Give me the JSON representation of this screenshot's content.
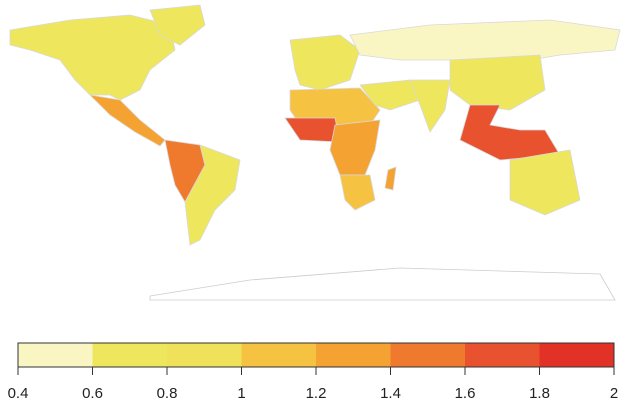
{
  "map": {
    "legend": {
      "ticks": [
        0.4,
        0.6,
        0.8,
        1,
        1.2,
        1.4,
        1.6,
        1.8,
        2
      ],
      "colors": [
        "#faf6c4",
        "#eee65c",
        "#efe25a",
        "#f5c242",
        "#f4a232",
        "#ef7a2e",
        "#e8522e",
        "#e23228"
      ]
    },
    "regions": {
      "values": [
        0.7,
        0.7,
        1.3,
        1.5,
        0.7,
        0.6,
        0.5,
        1.1,
        1.6,
        1.3,
        1.1,
        1.3,
        0.7,
        0.7,
        0.7,
        1.7,
        0.7
      ]
    }
  }
}
